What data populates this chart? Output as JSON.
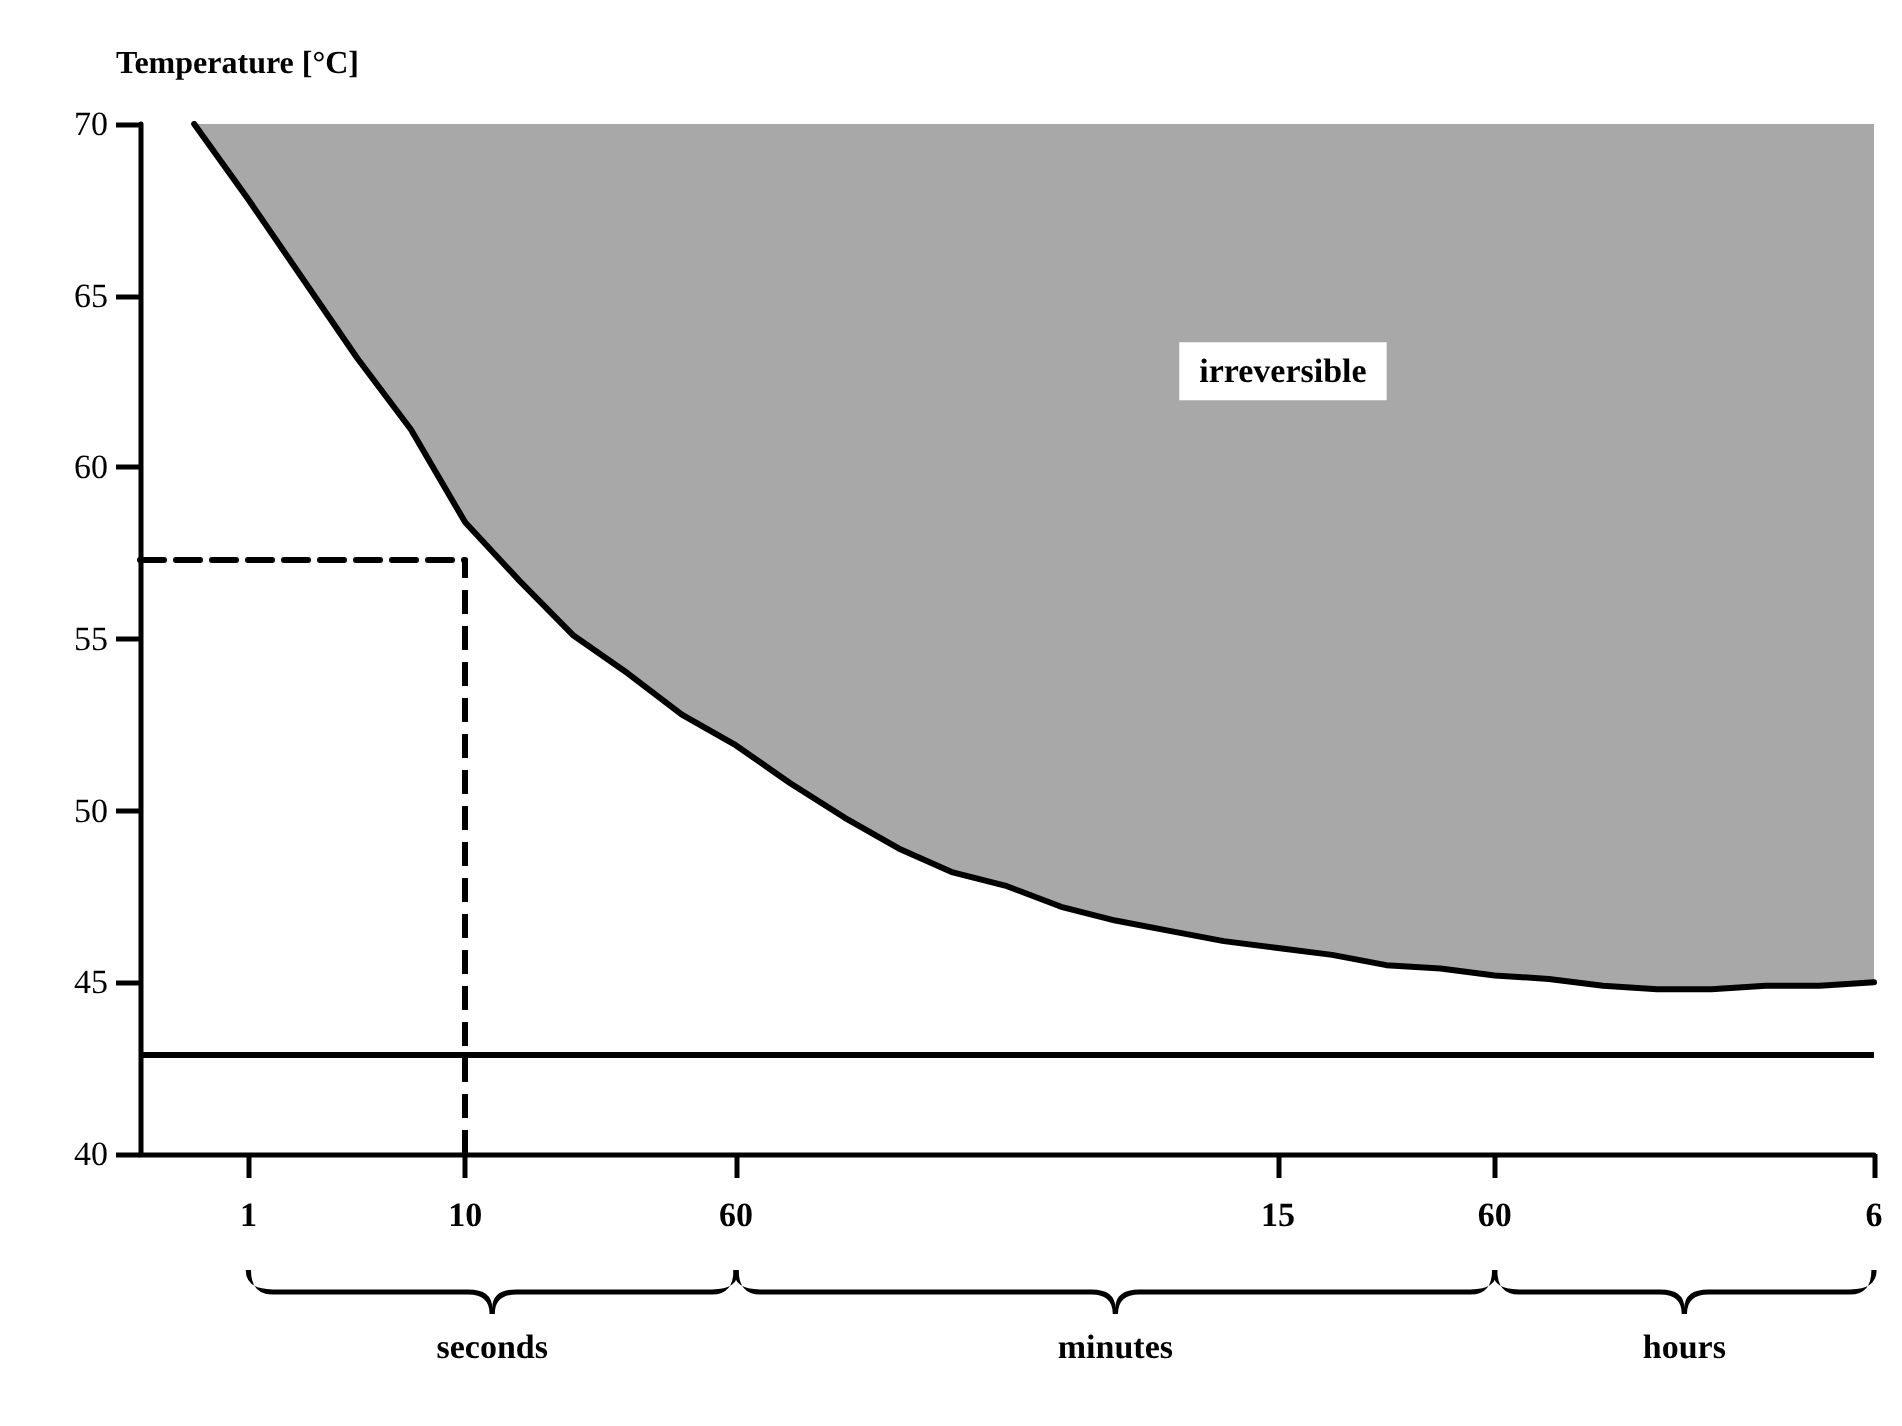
{
  "chart_data": {
    "type": "line",
    "ylabel": "Temperature [°C]",
    "categories": [
      null,
      null,
      "1",
      null,
      null,
      null,
      "10",
      null,
      null,
      null,
      null,
      "60",
      null,
      null,
      null,
      null,
      null,
      null,
      null,
      null,
      null,
      "15",
      null,
      null,
      null,
      "60",
      null,
      null,
      null,
      null,
      null,
      null,
      "6"
    ],
    "ylim": [
      40,
      70
    ],
    "yticks": [
      40,
      45,
      50,
      55,
      60,
      65,
      70
    ],
    "grid": false,
    "marker": "none",
    "series": [
      {
        "color": "#000000",
        "line_style": "solid",
        "values": [
          null,
          70.0,
          67.8,
          65.5,
          63.2,
          61.1,
          58.4,
          56.7,
          55.1,
          54.0,
          52.8,
          51.9,
          50.8,
          49.8,
          48.9,
          48.2,
          47.8,
          47.2,
          46.8,
          46.5,
          46.2,
          46.0,
          45.8,
          45.5,
          45.4,
          45.2,
          45.1,
          44.9,
          44.8,
          44.8,
          44.9,
          44.9,
          45.0
        ],
        "lower": [
          null,
          70.0,
          67.8,
          65.5,
          63.2,
          61.1,
          58.4,
          56.7,
          55.1,
          54.0,
          52.8,
          51.9,
          50.8,
          49.8,
          48.9,
          48.2,
          47.8,
          47.2,
          46.8,
          46.5,
          46.2,
          46.0,
          45.8,
          45.5,
          45.4,
          45.2,
          45.1,
          44.9,
          44.8,
          44.8,
          44.9,
          44.9,
          45.0
        ],
        "upper": [
          null,
          70,
          70,
          70,
          70,
          70,
          70,
          70,
          70,
          70,
          70,
          70,
          70,
          70,
          70,
          70,
          70,
          70,
          70,
          70,
          70,
          70,
          70,
          70,
          70,
          70,
          70,
          70,
          70,
          70,
          70,
          70,
          70
        ]
      },
      {
        "color": "#000000",
        "line_style": "dashed",
        "values": [
          57.3,
          57.3,
          57.3,
          57.3,
          57.3,
          57.3,
          57.3,
          null,
          null,
          null,
          null,
          null,
          null,
          null,
          null,
          null,
          null,
          null,
          null,
          null,
          null,
          null,
          null,
          null,
          null,
          null,
          null,
          null,
          null,
          null,
          null,
          null,
          null
        ]
      }
    ],
    "ref_lines": [
      {
        "axis": "y",
        "value": 42.9,
        "color": "#000000",
        "line_style": "solid"
      },
      {
        "axis": "x",
        "value": "10",
        "color": "#000000",
        "line_style": "dashed"
      }
    ],
    "annotations": [
      "irreversible",
      "seconds",
      "minutes",
      "hours"
    ]
  }
}
